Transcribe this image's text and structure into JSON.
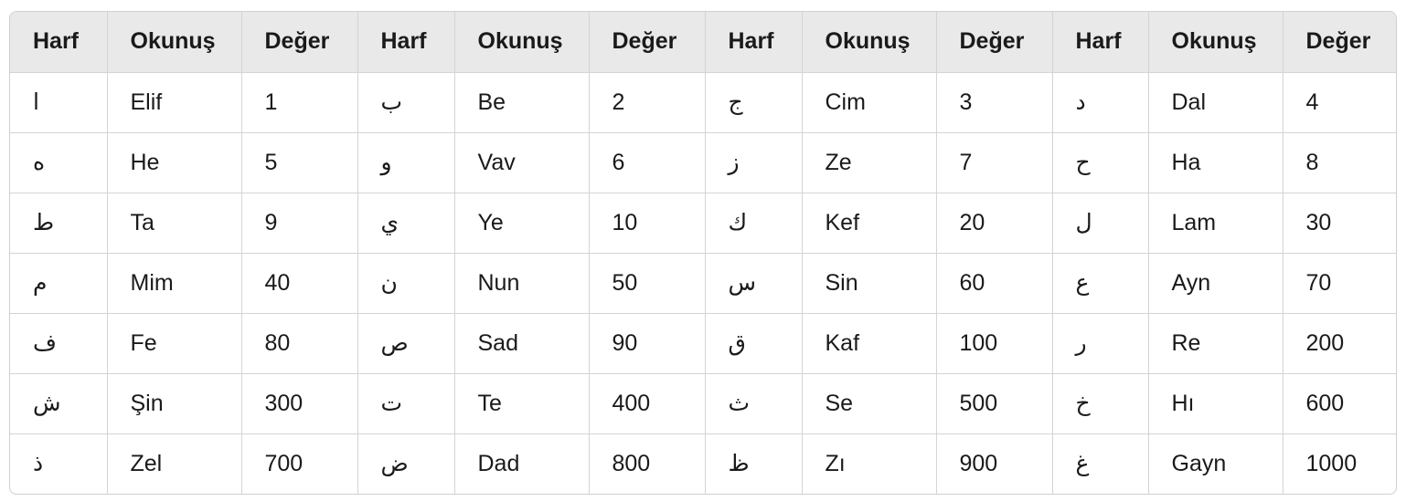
{
  "table": {
    "header": [
      "Harf",
      "Okunuş",
      "Değer",
      "Harf",
      "Okunuş",
      "Değer",
      "Harf",
      "Okunuş",
      "Değer",
      "Harf",
      "Okunuş",
      "Değer"
    ],
    "rows": [
      [
        "ا",
        "Elif",
        1,
        "ب",
        "Be",
        2,
        "ج",
        "Cim",
        3,
        "د",
        "Dal",
        4
      ],
      [
        "ه",
        "He",
        5,
        "و",
        "Vav",
        6,
        "ز",
        "Ze",
        7,
        "ح",
        "Ha",
        8
      ],
      [
        "ط",
        "Ta",
        9,
        "ي",
        "Ye",
        10,
        "ك",
        "Kef",
        20,
        "ل",
        "Lam",
        30
      ],
      [
        "م",
        "Mim",
        40,
        "ن",
        "Nun",
        50,
        "س",
        "Sin",
        60,
        "ع",
        "Ayn",
        70
      ],
      [
        "ف",
        "Fe",
        80,
        "ص",
        "Sad",
        90,
        "ق",
        "Kaf",
        100,
        "ر",
        "Re",
        200
      ],
      [
        "ش",
        "Şin",
        300,
        "ت",
        "Te",
        400,
        "ث",
        "Se",
        500,
        "خ",
        "Hı",
        600
      ],
      [
        "ذ",
        "Zel",
        700,
        "ض",
        "Dad",
        800,
        "ظ",
        "Zı",
        900,
        "غ",
        "Gayn",
        1000
      ]
    ]
  }
}
